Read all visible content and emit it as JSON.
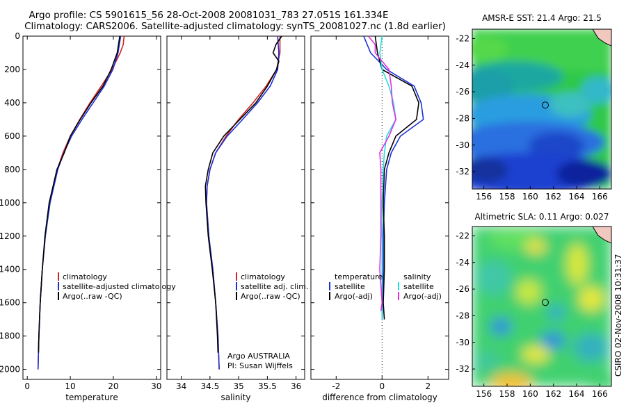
{
  "title": {
    "line1": "Argo profile: CS 5901615_56 28-Oct-2008 20081031_783 27.051S 161.334E",
    "line2": "Climatology: CARS2006. Satellite-adjusted climatology: synTS_20081027.nc (1.8d earlier)"
  },
  "colors": {
    "climatology": "#d42020",
    "satellite": "#1a2fd6",
    "argo": "#000000",
    "salinity_sat": "#22e0e0",
    "salinity_argo": "#e030e0"
  },
  "notes": {
    "institution": "Argo AUSTRALIA",
    "pi": "PI: Susan Wijffels",
    "stamp": "CSIRO 02-Nov-2008 10:31:37"
  },
  "legends": {
    "temperature": [
      "climatology",
      "satellite-adjusted climatology",
      "Argo(..raw -QC)"
    ],
    "salinity": [
      "climatology",
      "satellite adj. clim.",
      "Argo(..raw -QC)"
    ],
    "difference_left_title": "temperature",
    "difference_left": [
      "satellite",
      "Argo(-adj)"
    ],
    "difference_right_title": "salinity",
    "difference_right": [
      "satellite",
      "Argo(-adj)"
    ]
  },
  "chart_data": [
    {
      "type": "line",
      "id": "temperature",
      "xlabel": "temperature",
      "xlim": [
        -1,
        31
      ],
      "ylim": [
        2060,
        0
      ],
      "xticks": [
        "0",
        "10",
        "20",
        "30"
      ],
      "yticks": [
        "0",
        "200",
        "400",
        "600",
        "800",
        "1000",
        "1200",
        "1400",
        "1600",
        "1800",
        "2000"
      ],
      "series": [
        {
          "name": "climatology",
          "y": [
            0,
            50,
            100,
            200,
            300,
            400,
            500,
            600,
            700,
            800,
            1000,
            1200,
            1400,
            1600,
            1800,
            2000
          ],
          "x": [
            22.5,
            22.3,
            21.6,
            19.7,
            17.2,
            14.6,
            12.2,
            10.0,
            8.3,
            7.0,
            5.2,
            4.2,
            3.5,
            3.0,
            2.7,
            2.5
          ]
        },
        {
          "name": "satellite-adjusted climatology",
          "y": [
            0,
            50,
            100,
            200,
            300,
            400,
            500,
            600,
            700,
            800,
            1000,
            1200,
            1400,
            1600,
            1800,
            2000
          ],
          "x": [
            21.7,
            21.4,
            21.1,
            19.9,
            17.9,
            15.3,
            12.7,
            10.3,
            8.5,
            7.1,
            5.3,
            4.2,
            3.5,
            3.0,
            2.7,
            2.5
          ]
        },
        {
          "name": "Argo(..raw -QC)",
          "y": [
            0,
            50,
            100,
            200,
            300,
            400,
            500,
            600,
            700,
            800,
            900,
            1000,
            1200,
            1400,
            1600,
            1800,
            1900
          ],
          "x": [
            21.5,
            21.2,
            20.9,
            19.5,
            17.6,
            14.8,
            12.3,
            10.0,
            8.6,
            6.9,
            6.0,
            5.1,
            4.1,
            3.5,
            3.0,
            2.7,
            2.6
          ]
        }
      ]
    },
    {
      "type": "line",
      "id": "salinity",
      "xlabel": "salinity",
      "xlim": [
        33.75,
        36.15
      ],
      "ylim": [
        2060,
        0
      ],
      "xticks": [
        "34",
        "34.5",
        "35",
        "35.5",
        "36"
      ],
      "series": [
        {
          "name": "climatology",
          "y": [
            0,
            100,
            200,
            300,
            400,
            500,
            600,
            700,
            800,
            900,
            1000,
            1200,
            1400,
            1600,
            1800,
            2000
          ],
          "x": [
            35.72,
            35.72,
            35.66,
            35.48,
            35.25,
            35.0,
            34.78,
            34.6,
            34.5,
            34.45,
            34.44,
            34.48,
            34.55,
            34.6,
            34.64,
            34.66
          ]
        },
        {
          "name": "satellite adj. clim.",
          "y": [
            0,
            100,
            200,
            300,
            400,
            500,
            600,
            700,
            800,
            900,
            1000,
            1200,
            1400,
            1600,
            1800,
            2000
          ],
          "x": [
            35.68,
            35.7,
            35.68,
            35.55,
            35.33,
            35.07,
            34.8,
            34.6,
            34.5,
            34.45,
            34.44,
            34.48,
            34.55,
            34.6,
            34.64,
            34.66
          ]
        },
        {
          "name": "Argo(..raw -QC)",
          "y": [
            0,
            50,
            100,
            150,
            200,
            300,
            400,
            500,
            600,
            700,
            800,
            900,
            1000,
            1200,
            1400,
            1600,
            1800,
            1900
          ],
          "x": [
            35.75,
            35.65,
            35.6,
            35.7,
            35.66,
            35.5,
            35.3,
            35.02,
            34.74,
            34.55,
            34.47,
            34.42,
            34.43,
            34.47,
            34.54,
            34.6,
            34.63,
            34.64
          ]
        }
      ]
    },
    {
      "type": "line",
      "id": "difference",
      "xlabel": "difference from climatology",
      "xlim": [
        -3.1,
        2.9
      ],
      "ylim": [
        2060,
        0
      ],
      "xticks": [
        "-2",
        "0",
        "2"
      ],
      "zero_line": 0,
      "series": [
        {
          "name": "temperature satellite",
          "y": [
            0,
            100,
            200,
            300,
            400,
            500,
            600,
            700,
            800,
            1000,
            1200,
            1400,
            1600,
            1700
          ],
          "x": [
            -0.8,
            -0.5,
            0.2,
            1.4,
            1.7,
            1.8,
            0.8,
            0.4,
            0.2,
            0.1,
            0.05,
            0.05,
            0.02,
            0.0
          ]
        },
        {
          "name": "temperature Argo(-adj)",
          "y": [
            0,
            100,
            200,
            300,
            400,
            500,
            600,
            700,
            800,
            1000,
            1200,
            1400,
            1600,
            1700
          ],
          "x": [
            -0.3,
            -0.2,
            0.0,
            1.3,
            1.6,
            1.5,
            0.6,
            0.3,
            0.1,
            0.05,
            0.1,
            0.1,
            0.05,
            0.1
          ]
        },
        {
          "name": "salinity satellite",
          "y": [
            0,
            100,
            200,
            300,
            400,
            500,
            600,
            700,
            800,
            1000,
            1200,
            1400,
            1600,
            1700
          ],
          "x": [
            0.0,
            -0.1,
            0.0,
            0.3,
            0.5,
            0.6,
            0.2,
            0.1,
            0.05,
            0.0,
            0.0,
            0.0,
            0.0,
            0.0
          ]
        },
        {
          "name": "salinity Argo(-adj)",
          "y": [
            0,
            50,
            100,
            200,
            300,
            400,
            500,
            600,
            700,
            800,
            1000,
            1200,
            1400,
            1600,
            1650
          ],
          "x": [
            -0.6,
            -0.3,
            -0.3,
            0.3,
            0.4,
            0.45,
            0.6,
            0.3,
            -0.1,
            -0.05,
            -0.05,
            -0.05,
            -0.1,
            0.0,
            -0.05
          ]
        }
      ]
    },
    {
      "type": "heatmap",
      "id": "sst-map",
      "title": "AMSR-E SST: 21.4 Argo: 21.5",
      "xlim": [
        155,
        167
      ],
      "ylim": [
        -33.3,
        -21.3
      ],
      "xticks": [
        "156",
        "158",
        "160",
        "162",
        "164",
        "166"
      ],
      "yticks": [
        "-22",
        "-24",
        "-26",
        "-28",
        "-30",
        "-32"
      ],
      "marker": {
        "lon": 161.3,
        "lat": -27.0
      },
      "colormap": "jet"
    },
    {
      "type": "heatmap",
      "id": "sla-map",
      "title": "Altimetric SLA: 0.11 Argo: 0.027",
      "xlim": [
        155,
        167
      ],
      "ylim": [
        -33.3,
        -21.3
      ],
      "xticks": [
        "156",
        "158",
        "160",
        "162",
        "164",
        "166"
      ],
      "yticks": [
        "-22",
        "-24",
        "-26",
        "-28",
        "-30",
        "-32"
      ],
      "marker": {
        "lon": 161.3,
        "lat": -27.0
      },
      "colormap": "jet"
    }
  ]
}
